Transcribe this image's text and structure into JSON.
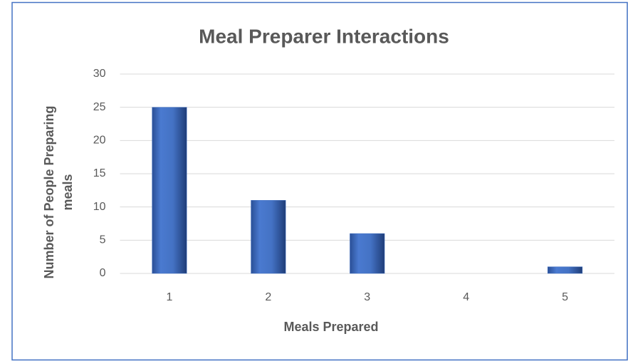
{
  "chart_data": {
    "type": "bar",
    "title": "Meal Preparer Interactions",
    "ylabel": [
      "Number of People Preparing",
      "meals"
    ],
    "xlabel": "Meals Prepared",
    "categories": [
      "1",
      "2",
      "3",
      "4",
      "5"
    ],
    "values": [
      25,
      11,
      6,
      0,
      1
    ],
    "color": "#4472c4",
    "ylim": [
      0,
      30
    ],
    "yticks": [
      0,
      5,
      10,
      15,
      20,
      25,
      30
    ],
    "grid": true
  }
}
